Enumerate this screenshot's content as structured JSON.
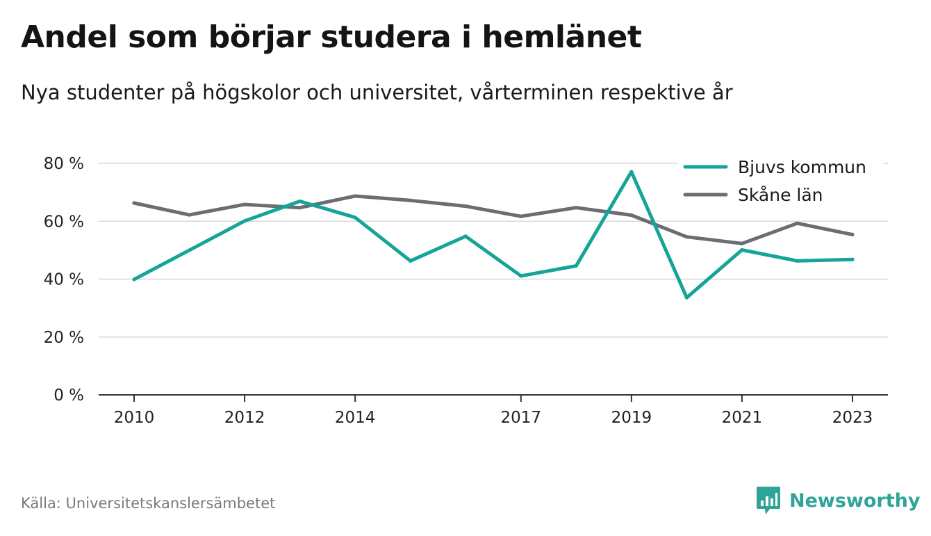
{
  "header": {
    "title": "Andel som börjar studera i hemlänet",
    "subtitle": "Nya studenter på högskolor och universitet, vårterminen respektive år"
  },
  "footer": {
    "source": "Källa: Universitetskanslersämbetet",
    "brand": "Newsworthy",
    "brand_icon": "bar-chart-speech-bubble-icon",
    "brand_color": "#2fa499"
  },
  "chart_data": {
    "type": "line",
    "title": "Andel som börjar studera i hemlänet",
    "subtitle": "Nya studenter på högskolor och universitet, vårterminen respektive år",
    "xlabel": "",
    "ylabel": "",
    "x": [
      2010,
      2011,
      2012,
      2013,
      2014,
      2015,
      2016,
      2017,
      2018,
      2019,
      2020,
      2021,
      2022,
      2023
    ],
    "x_ticks": [
      "2010",
      "2012",
      "2014",
      "2017",
      "2019",
      "2021",
      "2023"
    ],
    "y_ticks": [
      "0 %",
      "20 %",
      "40 %",
      "60 %",
      "80 %"
    ],
    "ylim": [
      0,
      80
    ],
    "grid": "horizontal",
    "legend_position": "top-right",
    "series": [
      {
        "name": "Bjuvs kommun",
        "color": "#14a598",
        "values": [
          39.9,
          50.0,
          60.1,
          66.9,
          61.3,
          46.3,
          54.8,
          41.1,
          44.6,
          77.1,
          33.6,
          50.1,
          46.3,
          46.8
        ]
      },
      {
        "name": "Skåne län",
        "color": "#6d6b73",
        "values": [
          66.3,
          62.2,
          65.8,
          64.7,
          68.7,
          67.2,
          65.2,
          61.7,
          64.7,
          62.1,
          54.6,
          52.3,
          59.3,
          55.4
        ]
      }
    ]
  }
}
